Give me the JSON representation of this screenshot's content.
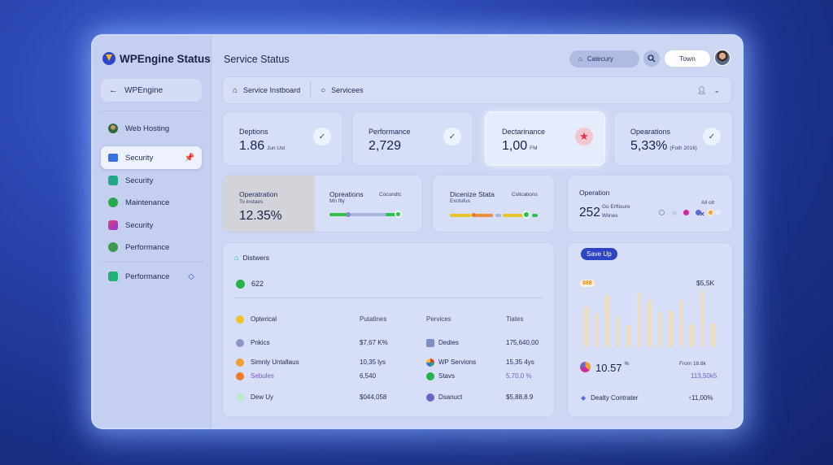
{
  "app": {
    "brand": "WPEngine Status",
    "page_title": "Service Status"
  },
  "sidebar": {
    "back_label": "WPEngine",
    "items": [
      {
        "label": "Web Hosting",
        "icon": "user-icon"
      },
      {
        "label": "Security",
        "icon": "folder-icon",
        "active": true
      },
      {
        "label": "Security",
        "icon": "shield-icon"
      },
      {
        "label": "Maintenance",
        "icon": "wrench-icon"
      },
      {
        "label": "Security",
        "icon": "lock-icon"
      },
      {
        "label": "Performance",
        "icon": "gauge-icon"
      },
      {
        "label": "Performance",
        "icon": "chart-icon"
      }
    ]
  },
  "header": {
    "category_label": "Catecury",
    "town_button": "Town"
  },
  "tabs": [
    {
      "label": "Service Instboard",
      "icon": "home-icon"
    },
    {
      "label": "Servicees",
      "icon": "circle-icon"
    }
  ],
  "kpis": [
    {
      "label": "Deptions",
      "value": "1.86",
      "unit": "Jun Ust",
      "icon": "check-icon"
    },
    {
      "label": "Performance",
      "value": "2,729",
      "unit": "",
      "icon": "check-icon"
    },
    {
      "label": "Dectarinance",
      "value": "1,00",
      "unit": "FM",
      "icon": "star-icon"
    },
    {
      "label": "Opearations",
      "value": "5,33%",
      "unit": "(Foth 2016)",
      "icon": "check-icon"
    }
  ],
  "row2": {
    "op": {
      "label": "Operatration",
      "sub": "To instaes",
      "value": "12.35%"
    },
    "ops": {
      "label": "Opreations",
      "sub": "Mn flly",
      "right_label": "Cocundtc"
    },
    "dc": {
      "label": "Dicenize Stata",
      "sub": "Exctufus",
      "right_label": "Colications"
    },
    "opn": {
      "label": "Operation",
      "value": "252",
      "line1": "Go Erftisure",
      "line2": "Wlines",
      "right_label": "All oit"
    }
  },
  "table": {
    "title": "Distwers",
    "count": "622",
    "headers": [
      "Opterical",
      "Putatines",
      "Pervices",
      "Tiates"
    ],
    "rows": [
      {
        "c1": "Pnkics",
        "c2": "$7,67 K%",
        "c3": "Dedies",
        "c4": "175,640,00"
      },
      {
        "c1": "Simnly Untallaus",
        "c2": "10,35 lys",
        "c3": "WP Servions",
        "c4": "15,35 4ys"
      },
      {
        "c1": "Sebules",
        "c2": "6,540",
        "c3": "Stavs",
        "c4": "5,70,0 %"
      },
      {
        "c1": "Dew Uy",
        "c2": "$044,058",
        "c3": "Dsanuct",
        "c4": "$5,88,8.9"
      }
    ]
  },
  "chart": {
    "badge": "Save Up",
    "orange_badge": "888",
    "top_value": "$5,5K",
    "main_value": "10.57",
    "main_unit": "%",
    "from_label": "From 18.8k",
    "from_value": "113,50k5",
    "footer_label": "Dealty Contrater",
    "footer_value": "11,00%"
  },
  "chart_data": {
    "type": "bar",
    "values": [
      0.68,
      0.57,
      0.88,
      0.51,
      0.37,
      0.92,
      0.79,
      0.6,
      0.62,
      0.79,
      0.39,
      0.95,
      0.4
    ]
  },
  "colors": {
    "accent": "#2b46c9",
    "alert": "#e3344a",
    "success": "#27b24a",
    "warning": "#f0a030"
  }
}
